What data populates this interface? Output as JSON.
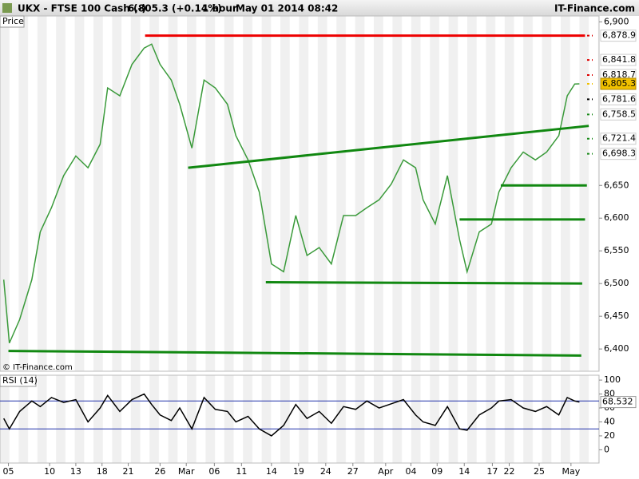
{
  "chart_data": [
    {
      "type": "line",
      "title": "UKX - FTSE 100 Cash (-)",
      "quote": "6,805.3 (+0.14%)",
      "interval": "1 hour",
      "timestamp": "May 01 2014 08:42",
      "brand": "IT-Finance.com",
      "panel_label": "Price",
      "copyright": "© IT-Finance.com",
      "x": [
        0.4,
        1.0,
        2.1,
        3.4,
        4.3,
        5.5,
        6.8,
        8.1,
        9.4,
        10.7,
        11.5,
        12.8,
        14.1,
        15.4,
        16.2,
        17.1,
        18.3,
        19.2,
        20.5,
        21.8,
        23.0,
        24.3,
        25.2,
        26.5,
        27.7,
        29.0,
        30.3,
        31.6,
        32.8,
        34.1,
        35.4,
        36.7,
        38.0,
        39.2,
        40.5,
        41.8,
        43.1,
        44.4,
        45.2,
        46.5,
        47.8,
        49.1,
        49.9,
        51.2,
        52.5,
        53.3,
        54.6,
        55.9,
        57.2,
        58.4,
        59.7,
        60.6,
        61.4,
        61.9
      ],
      "series": [
        {
          "color": "#3a9a3a",
          "values": [
            6506,
            6409,
            6445,
            6506,
            6579,
            6616,
            6665,
            6695,
            6677,
            6713,
            6799,
            6787,
            6835,
            6860,
            6866,
            6835,
            6811,
            6774,
            6707,
            6811,
            6799,
            6774,
            6726,
            6689,
            6640,
            6530,
            6518,
            6604,
            6543,
            6555,
            6530,
            6604,
            6604,
            6616,
            6628,
            6652,
            6689,
            6677,
            6628,
            6591,
            6665,
            6567,
            6518,
            6579,
            6591,
            6640,
            6677,
            6701,
            6689,
            6701,
            6726,
            6787,
            6805,
            6805.3
          ]
        }
      ],
      "xlim": [
        0,
        64
      ],
      "xticks": [
        {
          "value": 0.9,
          "label": "05"
        },
        {
          "value": 5.3,
          "label": "10"
        },
        {
          "value": 8.1,
          "label": "13"
        },
        {
          "value": 10.9,
          "label": "18"
        },
        {
          "value": 13.7,
          "label": "21"
        },
        {
          "value": 17.1,
          "label": "26"
        },
        {
          "value": 19.9,
          "label": "Mar"
        },
        {
          "value": 22.9,
          "label": "06"
        },
        {
          "value": 25.8,
          "label": "11"
        },
        {
          "value": 29.0,
          "label": "14"
        },
        {
          "value": 31.9,
          "label": "19"
        },
        {
          "value": 34.8,
          "label": "24"
        },
        {
          "value": 37.7,
          "label": "27"
        },
        {
          "value": 41.2,
          "label": "Apr"
        },
        {
          "value": 43.9,
          "label": "04"
        },
        {
          "value": 46.7,
          "label": "09"
        },
        {
          "value": 49.6,
          "label": "14"
        },
        {
          "value": 52.6,
          "label": "17"
        },
        {
          "value": 54.4,
          "label": "22"
        },
        {
          "value": 57.6,
          "label": "25"
        },
        {
          "value": 61.0,
          "label": "May"
        }
      ],
      "ylim": [
        6366,
        6909
      ],
      "yticks": [
        {
          "value": 6400,
          "label": "6,400"
        },
        {
          "value": 6450,
          "label": "6,450"
        },
        {
          "value": 6500,
          "label": "6,500"
        },
        {
          "value": 6550,
          "label": "6,550"
        },
        {
          "value": 6600,
          "label": "6,600"
        },
        {
          "value": 6650,
          "label": "6,650"
        },
        {
          "value": 6900,
          "label": "6,900"
        }
      ],
      "levels": [
        {
          "value": 6878.9,
          "label": "6,878.9",
          "color": "#dd0000"
        },
        {
          "value": 6841.8,
          "label": "6,841.8",
          "color": "#dd0000"
        },
        {
          "value": 6818.7,
          "label": "6,818.7",
          "color": "#dd0000"
        },
        {
          "value": 6805.3,
          "label": "6,805.3",
          "color": "#f0c000"
        },
        {
          "value": 6781.6,
          "label": "6,781.6",
          "color": "#000000"
        },
        {
          "value": 6758.5,
          "label": "6,758.5",
          "color": "#1a8a1a"
        },
        {
          "value": 6721.4,
          "label": "6,721.4",
          "color": "#1a8a1a"
        },
        {
          "value": 6698.3,
          "label": "6,698.3",
          "color": "#1a8a1a"
        }
      ],
      "trendlines": [
        {
          "color": "#ee0000",
          "x": [
            15.5,
            62.5
          ],
          "y": [
            6878.9,
            6878.9
          ]
        },
        {
          "color": "#118811",
          "x": [
            20.1,
            62.9
          ],
          "y": [
            6677,
            6741
          ]
        },
        {
          "color": "#118811",
          "x": [
            53.5,
            62.7
          ],
          "y": [
            6650,
            6650
          ]
        },
        {
          "color": "#118811",
          "x": [
            49.1,
            62.5
          ],
          "y": [
            6598,
            6598
          ]
        },
        {
          "color": "#118811",
          "x": [
            28.4,
            62.2
          ],
          "y": [
            6502,
            6500
          ]
        },
        {
          "color": "#118811",
          "x": [
            0.9,
            62.1
          ],
          "y": [
            6397,
            6390
          ]
        }
      ]
    },
    {
      "type": "line",
      "title": "RSI (14)",
      "current": "68.532",
      "series": [
        {
          "color": "#000000",
          "values": [
            45,
            30,
            55,
            70,
            62,
            75,
            68,
            72,
            40,
            60,
            78,
            55,
            72,
            80,
            65,
            50,
            42,
            60,
            30,
            75,
            58,
            55,
            40,
            48,
            30,
            20,
            35,
            65,
            45,
            55,
            38,
            62,
            58,
            70,
            60,
            66,
            72,
            50,
            40,
            35,
            62,
            30,
            28,
            50,
            60,
            70,
            72,
            60,
            55,
            62,
            50,
            75,
            70,
            68.532
          ]
        }
      ],
      "bands": [
        30,
        70
      ],
      "band_color": "#2233aa",
      "ylim": [
        -19,
        107
      ],
      "yticks": [
        0,
        20,
        40,
        60,
        80,
        100
      ]
    }
  ]
}
